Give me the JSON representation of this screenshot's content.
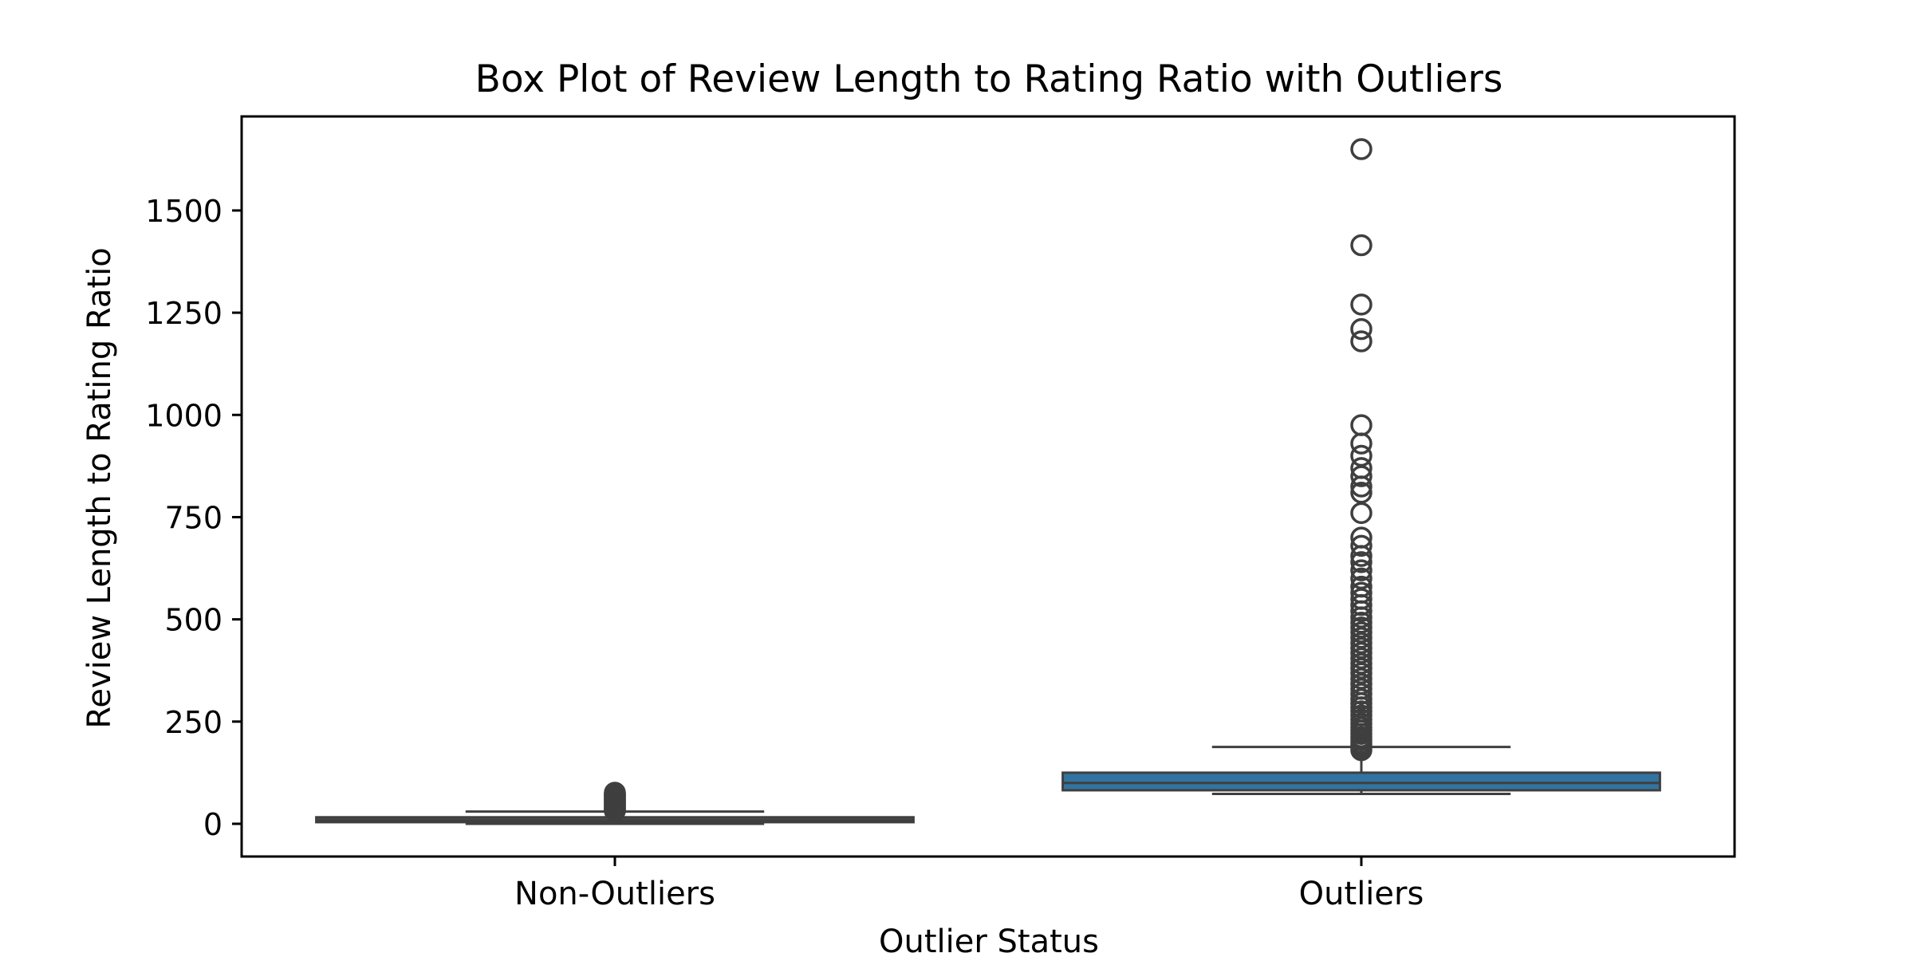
{
  "chart_data": {
    "type": "box",
    "title": "Box Plot of Review Length to Rating Ratio with Outliers",
    "xlabel": "Outlier Status",
    "ylabel": "Review Length to Rating Ratio",
    "ylim": [
      -80,
      1730
    ],
    "yticks": [
      0,
      250,
      500,
      750,
      1000,
      1250,
      1500
    ],
    "grid": false,
    "categories": [
      "Non-Outliers",
      "Outliers"
    ],
    "boxes": [
      {
        "category": "Non-Outliers",
        "color": "#4c4c4c",
        "whisker_low": 0,
        "q1": 4,
        "median": 8,
        "q3": 16,
        "whisker_high": 30,
        "fliers": [
          32,
          34,
          36,
          38,
          40,
          42,
          44,
          46,
          48,
          50,
          52,
          54,
          56,
          58,
          60,
          62,
          64,
          66,
          68,
          70,
          72,
          74,
          76
        ]
      },
      {
        "category": "Outliers",
        "color": "#3274a1",
        "whisker_low": 73,
        "q1": 82,
        "median": 100,
        "q3": 125,
        "whisker_high": 188,
        "fliers": [
          180,
          186,
          192,
          198,
          205,
          212,
          220,
          228,
          236,
          245,
          255,
          265,
          275,
          285,
          295,
          305,
          318,
          330,
          342,
          355,
          368,
          380,
          392,
          405,
          418,
          430,
          442,
          455,
          468,
          480,
          492,
          505,
          520,
          535,
          550,
          565,
          580,
          600,
          620,
          640,
          655,
          680,
          700,
          760,
          810,
          825,
          850,
          870,
          900,
          930,
          975,
          1180,
          1210,
          1270,
          1415,
          1650
        ]
      }
    ]
  }
}
